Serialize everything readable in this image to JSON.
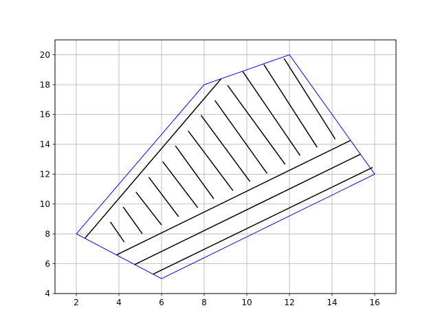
{
  "chart_data": {
    "type": "line",
    "title": "",
    "xlabel": "",
    "ylabel": "",
    "xlim": [
      1,
      17
    ],
    "ylim": [
      4,
      21
    ],
    "grid": true,
    "x_ticks": [
      2,
      4,
      6,
      8,
      10,
      12,
      14,
      16
    ],
    "y_ticks": [
      4,
      6,
      8,
      10,
      12,
      14,
      16,
      18,
      20
    ],
    "colors": {
      "boundary": "#0000ff",
      "hatch": "#000000",
      "grid": "#b0b0b0"
    },
    "boundary": [
      [
        2,
        8
      ],
      [
        6,
        5
      ],
      [
        16,
        12
      ],
      [
        12,
        20
      ],
      [
        8,
        18
      ],
      [
        2,
        8
      ]
    ],
    "hatch_segments": [
      [
        [
          2.4,
          7.7
        ],
        [
          8.8,
          18.4
        ]
      ],
      [
        [
          3.6,
          8.8
        ],
        [
          4.25,
          7.45
        ]
      ],
      [
        [
          4.2,
          9.8
        ],
        [
          5.1,
          8.0
        ]
      ],
      [
        [
          4.8,
          10.8
        ],
        [
          6.0,
          8.6
        ]
      ],
      [
        [
          5.4,
          11.8
        ],
        [
          6.8,
          9.15
        ]
      ],
      [
        [
          6.05,
          12.85
        ],
        [
          7.7,
          9.75
        ]
      ],
      [
        [
          6.65,
          13.9
        ],
        [
          8.45,
          10.35
        ]
      ],
      [
        [
          7.25,
          14.9
        ],
        [
          9.35,
          10.9
        ]
      ],
      [
        [
          7.85,
          15.95
        ],
        [
          10.15,
          11.5
        ]
      ],
      [
        [
          8.5,
          16.95
        ],
        [
          10.95,
          12.05
        ]
      ],
      [
        [
          9.1,
          17.95
        ],
        [
          11.8,
          12.65
        ]
      ],
      [
        [
          9.8,
          18.9
        ],
        [
          12.5,
          13.25
        ]
      ],
      [
        [
          10.8,
          19.35
        ],
        [
          13.3,
          13.8
        ]
      ],
      [
        [
          11.75,
          19.75
        ],
        [
          14.15,
          14.35
        ]
      ],
      [
        [
          3.9,
          6.6
        ],
        [
          14.85,
          14.25
        ]
      ],
      [
        [
          4.75,
          5.95
        ],
        [
          15.35,
          13.35
        ]
      ],
      [
        [
          5.6,
          5.3
        ],
        [
          15.9,
          12.45
        ]
      ]
    ]
  }
}
